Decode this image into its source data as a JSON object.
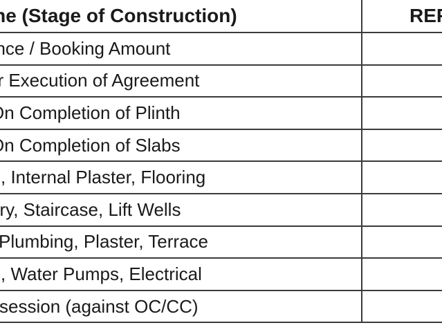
{
  "table": {
    "headers": {
      "stage": "one (Stage of Construction)",
      "ref": "REF"
    },
    "rows": [
      {
        "stage": "vance / Booking Amount",
        "ref": ""
      },
      {
        "stage": "er Execution of Agreement",
        "ref": ""
      },
      {
        "stage": "On Completion of Plinth",
        "ref": ""
      },
      {
        "stage": "On Completion of Slabs",
        "ref": ""
      },
      {
        "stage": "s, Internal Plaster, Flooring",
        "ref": ""
      },
      {
        "stage": "itary, Staircase, Lift Wells",
        "ref": ""
      },
      {
        "stage": "Plumbing, Plaster, Terrace",
        "ref": ""
      },
      {
        "stage": "s, Water Pumps, Electrical",
        "ref": ""
      },
      {
        "stage": "ssession (against OC/CC)",
        "ref": ""
      }
    ]
  }
}
